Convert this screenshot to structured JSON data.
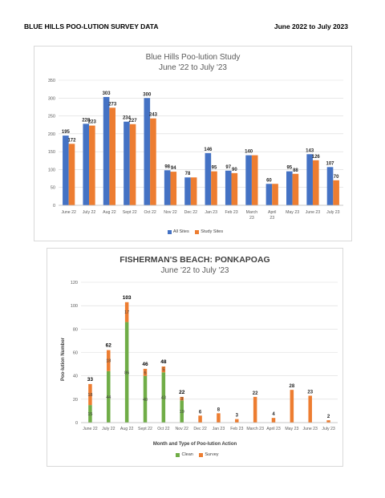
{
  "header": {
    "left": "BLUE HILLS POO-LUTION SURVEY DATA",
    "right": "June 2022 to July 2023"
  },
  "chart_data": [
    {
      "type": "bar",
      "title": "Blue Hills Poo-lution Study",
      "subtitle": "June '22 to July '23",
      "categories": [
        "June 22",
        "July 22",
        "Aug 22",
        "Sept 22",
        "Oct 22",
        "Nov 22",
        "Dec 22",
        "Jan 23",
        "Feb 23",
        "March 23",
        "April 23",
        "May 23",
        "June 23",
        "July 23"
      ],
      "series": [
        {
          "name": "All Sites",
          "values": [
            195,
            228,
            303,
            234,
            300,
            98,
            78,
            146,
            97,
            140,
            60,
            95,
            143,
            107
          ],
          "color": "#4472c4"
        },
        {
          "name": "Study Sites",
          "values": [
            172,
            223,
            273,
            227,
            243,
            94,
            78,
            95,
            90,
            140,
            60,
            88,
            126,
            70
          ],
          "color": "#ed7d31"
        }
      ],
      "data_labels": [
        {
          "series": 0,
          "index": 0,
          "text": "195"
        },
        {
          "series": 1,
          "index": 0,
          "text": "172"
        },
        {
          "series": 0,
          "index": 1,
          "text": "228"
        },
        {
          "series": 1,
          "index": 1,
          "text": "223"
        },
        {
          "series": 0,
          "index": 2,
          "text": "303"
        },
        {
          "series": 1,
          "index": 2,
          "text": "273"
        },
        {
          "series": 0,
          "index": 3,
          "text": "234"
        },
        {
          "series": 1,
          "index": 3,
          "text": "227"
        },
        {
          "series": 0,
          "index": 4,
          "text": "300"
        },
        {
          "series": 1,
          "index": 4,
          "text": "243"
        },
        {
          "series": 0,
          "index": 5,
          "text": "98"
        },
        {
          "series": 1,
          "index": 5,
          "text": "94"
        },
        {
          "series": 0,
          "index": 6,
          "text": "78"
        },
        {
          "series": 0,
          "index": 7,
          "text": "146"
        },
        {
          "series": 1,
          "index": 7,
          "text": "95"
        },
        {
          "series": 0,
          "index": 8,
          "text": "97"
        },
        {
          "series": 1,
          "index": 8,
          "text": "90"
        },
        {
          "series": 0,
          "index": 9,
          "text": "140"
        },
        {
          "series": 0,
          "index": 10,
          "text": "60"
        },
        {
          "series": 0,
          "index": 11,
          "text": "95"
        },
        {
          "series": 1,
          "index": 11,
          "text": "88"
        },
        {
          "series": 0,
          "index": 12,
          "text": "143"
        },
        {
          "series": 1,
          "index": 12,
          "text": "126"
        },
        {
          "series": 0,
          "index": 13,
          "text": "107"
        },
        {
          "series": 1,
          "index": 13,
          "text": "70"
        }
      ],
      "ylim": [
        0,
        350
      ],
      "yticks": [
        0,
        50,
        100,
        150,
        200,
        250,
        300,
        350
      ],
      "grid": true,
      "legend": "bottom"
    },
    {
      "type": "bar",
      "stacked": true,
      "title": "FISHERMAN'S BEACH: PONKAPOAG",
      "subtitle": "June '22 to July '23",
      "xlabel": "Month and Type of Poo-lution Action",
      "ylabel": "Poo-lution Number",
      "categories": [
        "June 22",
        "July 22",
        "Aug 22",
        "Sept 22",
        "Oct 22",
        "Nov 22",
        "Dec 22",
        "Jan 23",
        "Feb 23",
        "March 23",
        "April 23",
        "May 23",
        "June 23",
        "July 23"
      ],
      "series": [
        {
          "name": "Clean",
          "values": [
            15,
            44,
            86,
            40,
            43,
            19,
            0,
            0,
            0,
            0,
            0,
            0,
            0,
            0
          ],
          "color": "#70ad47"
        },
        {
          "name": "Survey",
          "values": [
            18,
            18,
            17,
            6,
            5,
            3,
            6,
            8,
            3,
            22,
            4,
            28,
            23,
            2
          ],
          "color": "#ed7d31"
        }
      ],
      "totals": [
        33,
        62,
        103,
        46,
        48,
        22,
        6,
        8,
        3,
        22,
        4,
        28,
        23,
        2
      ],
      "data_labels": [
        {
          "series": 0,
          "index": 0,
          "text": "15"
        },
        {
          "series": 1,
          "index": 0,
          "text": "18"
        },
        {
          "series": "total",
          "index": 0,
          "text": "33"
        },
        {
          "series": 0,
          "index": 1,
          "text": "44"
        },
        {
          "series": 1,
          "index": 1,
          "text": "18"
        },
        {
          "series": "total",
          "index": 1,
          "text": "62"
        },
        {
          "series": 0,
          "index": 2,
          "text": "86"
        },
        {
          "series": 1,
          "index": 2,
          "text": "17"
        },
        {
          "series": "total",
          "index": 2,
          "text": "103"
        },
        {
          "series": 0,
          "index": 3,
          "text": "40"
        },
        {
          "series": 1,
          "index": 3,
          "text": "6"
        },
        {
          "series": "total",
          "index": 3,
          "text": "46"
        },
        {
          "series": 0,
          "index": 4,
          "text": "43"
        },
        {
          "series": 1,
          "index": 4,
          "text": "5"
        },
        {
          "series": "total",
          "index": 4,
          "text": "48"
        },
        {
          "series": 0,
          "index": 5,
          "text": "19"
        },
        {
          "series": 1,
          "index": 5,
          "text": "3"
        },
        {
          "series": "total",
          "index": 5,
          "text": "22"
        },
        {
          "series": 1,
          "index": 6,
          "text": "6"
        },
        {
          "series": 1,
          "index": 7,
          "text": "8"
        },
        {
          "series": 1,
          "index": 8,
          "text": "3"
        },
        {
          "series": 1,
          "index": 9,
          "text": "22"
        },
        {
          "series": 1,
          "index": 10,
          "text": "4"
        },
        {
          "series": 1,
          "index": 11,
          "text": "28"
        },
        {
          "series": 1,
          "index": 12,
          "text": "23"
        },
        {
          "series": 1,
          "index": 13,
          "text": "2"
        }
      ],
      "ylim": [
        0,
        120
      ],
      "yticks": [
        0,
        20,
        40,
        60,
        80,
        100,
        120
      ],
      "grid": true,
      "legend": "bottom"
    }
  ]
}
